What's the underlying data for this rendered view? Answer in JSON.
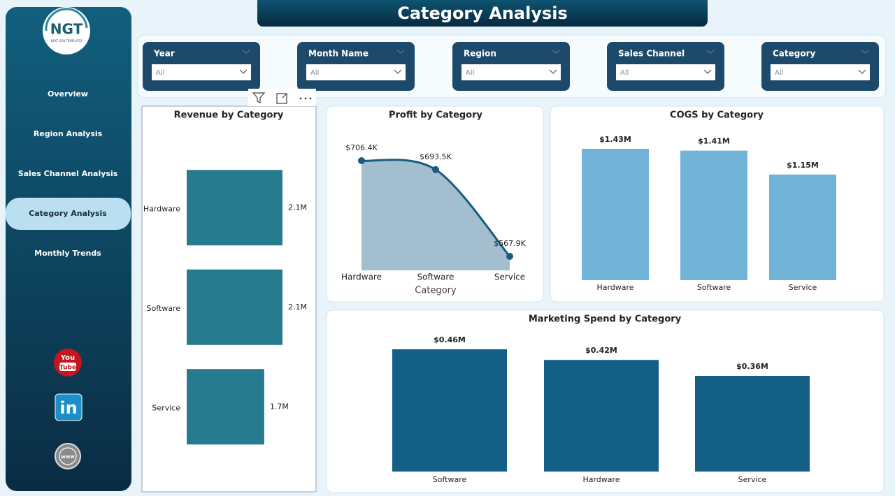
{
  "header": {
    "title": "Category Analysis"
  },
  "nav": {
    "logo": "NGT",
    "logo_caption": "NEXT GEN TEMPLATES",
    "items": [
      "Overview",
      "Region Analysis",
      "Sales Channel Analysis",
      "Category Analysis",
      "Monthly Trends"
    ],
    "active": 3,
    "social": {
      "youtube": [
        "You",
        "Tube"
      ],
      "linkedin": "in",
      "web": "www"
    }
  },
  "filters": [
    {
      "label": "Year",
      "value": "All"
    },
    {
      "label": "Month Name",
      "value": "All"
    },
    {
      "label": "Region",
      "value": "All"
    },
    {
      "label": "Sales Channel",
      "value": "All"
    },
    {
      "label": "Category",
      "value": "All"
    }
  ],
  "chart_data": [
    {
      "type": "barh",
      "title": "Revenue by Category",
      "categories": [
        "Hardware",
        "Software",
        "Service"
      ],
      "values": [
        2.1,
        2.1,
        1.7
      ],
      "value_labels": [
        "2.1M",
        "2.1M",
        "1.7M"
      ],
      "color": "#267b8f"
    },
    {
      "type": "area",
      "title": "Profit by Category",
      "x_label": "Category",
      "categories": [
        "Hardware",
        "Software",
        "Service"
      ],
      "values": [
        706.4,
        693.5,
        567.9
      ],
      "value_labels": [
        "$706.4K",
        "$693.5K",
        "$567.9K"
      ],
      "color": "#1a5b80",
      "fill": "#a3bfcf"
    },
    {
      "type": "bar",
      "title": "COGS by Category",
      "categories": [
        "Hardware",
        "Software",
        "Service"
      ],
      "values": [
        1.43,
        1.41,
        1.15
      ],
      "value_labels": [
        "$1.43M",
        "$1.41M",
        "$1.15M"
      ],
      "color": "#72b4d8"
    },
    {
      "type": "bar",
      "title": "Marketing Spend by Category",
      "categories": [
        "Software",
        "Hardware",
        "Service"
      ],
      "values": [
        0.46,
        0.42,
        0.36
      ],
      "value_labels": [
        "$0.46M",
        "$0.42M",
        "$0.36M"
      ],
      "color": "#135f86"
    }
  ]
}
